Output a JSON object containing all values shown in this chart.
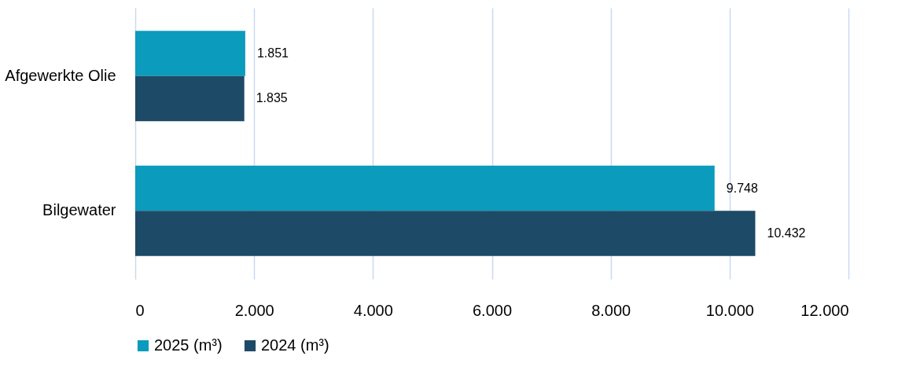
{
  "chart_data": {
    "type": "bar",
    "orientation": "horizontal",
    "categories": [
      "Afgewerkte Olie",
      "Bilgewater"
    ],
    "series": [
      {
        "name": "2025 (m³)",
        "color": "#0a9bbd",
        "values": [
          1851,
          9748
        ],
        "value_labels": [
          "1.851",
          "9.748"
        ]
      },
      {
        "name": "2024 (m³)",
        "color": "#1d4a66",
        "values": [
          1835,
          10432
        ],
        "value_labels": [
          "1.835",
          "10.432"
        ]
      }
    ],
    "xlim": [
      0,
      12000
    ],
    "xticks": [
      0,
      {
        "value": 2000,
        "label": "2.000"
      },
      {
        "value": 4000,
        "label": "4.000"
      },
      {
        "value": 6000,
        "label": "6.000"
      },
      {
        "value": 8000,
        "label": "8.000"
      },
      {
        "value": 10000,
        "label": "10.000"
      },
      {
        "value": 12000,
        "label": "12.000"
      }
    ],
    "grid": "x",
    "legend": "bottom"
  }
}
